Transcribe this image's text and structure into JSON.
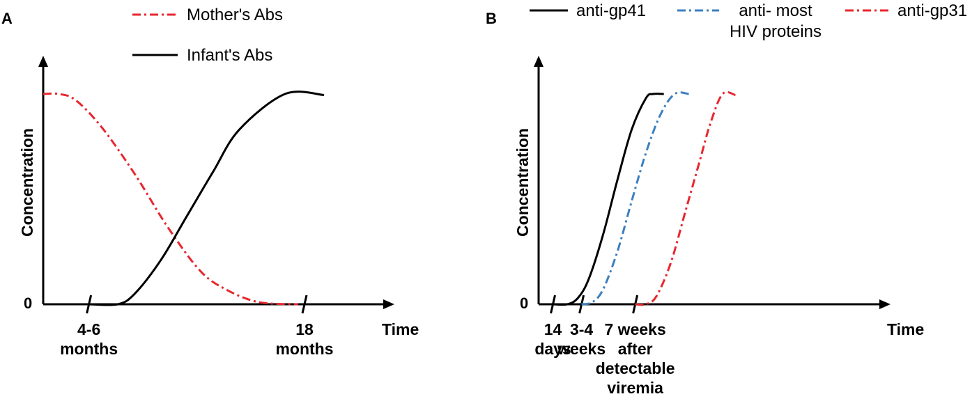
{
  "chart_data": [
    {
      "panel": "A",
      "type": "line",
      "ylabel": "Concentration",
      "xlabel": "Time",
      "y_zero_label": "0",
      "xlim": [
        0,
        20
      ],
      "ylim": [
        0,
        1
      ],
      "x_ticks": [
        {
          "x": 3.5,
          "label": [
            "4-6",
            "months"
          ]
        },
        {
          "x": 20,
          "label": [
            "18",
            "months"
          ]
        }
      ],
      "series": [
        {
          "name": "Mother's Abs",
          "color": "#e8262e",
          "dash": "dashdot",
          "points": [
            [
              0,
              1.0
            ],
            [
              1.2,
              1.0
            ],
            [
              2.5,
              0.97
            ],
            [
              4.5,
              0.84
            ],
            [
              7,
              0.62
            ],
            [
              9.5,
              0.37
            ],
            [
              12,
              0.16
            ],
            [
              14,
              0.07
            ],
            [
              16.5,
              0.01
            ],
            [
              19.5,
              0.0
            ]
          ]
        },
        {
          "name": "Infant's Abs",
          "color": "#000000",
          "dash": "solid",
          "points": [
            [
              3.5,
              0.0
            ],
            [
              5.7,
              0.0
            ],
            [
              7,
              0.05
            ],
            [
              9,
              0.21
            ],
            [
              11,
              0.42
            ],
            [
              13,
              0.63
            ],
            [
              15,
              0.83
            ],
            [
              18.5,
              1.0
            ],
            [
              21.5,
              0.995
            ]
          ]
        }
      ]
    },
    {
      "panel": "B",
      "type": "line",
      "ylabel": "Concentration",
      "xlabel": "Time",
      "y_zero_label": "0",
      "xlim": [
        0,
        26
      ],
      "ylim": [
        0,
        1
      ],
      "x_ticks": [
        {
          "x": 2,
          "label": [
            "14",
            "days"
          ]
        },
        {
          "x": 6,
          "label": [
            "3-4",
            "weeks"
          ]
        },
        {
          "x": 13.5,
          "label": [
            "7 weeks",
            "after",
            "detectable",
            "viremia"
          ]
        }
      ],
      "series": [
        {
          "name": "anti-gp41",
          "color": "#000000",
          "dash": "solid",
          "points": [
            [
              2,
              0.0
            ],
            [
              4,
              0.0
            ],
            [
              5.5,
              0.03
            ],
            [
              7,
              0.12
            ],
            [
              9,
              0.33
            ],
            [
              11,
              0.59
            ],
            [
              13,
              0.83
            ],
            [
              15,
              0.98
            ],
            [
              16,
              1.0
            ],
            [
              17.5,
              1.0
            ]
          ]
        },
        {
          "name": "anti- most HIV proteins",
          "color": "#3c7fbf",
          "dash": "dashdot",
          "points": [
            [
              6,
              0.0
            ],
            [
              7.5,
              0.01
            ],
            [
              9,
              0.07
            ],
            [
              11,
              0.25
            ],
            [
              13,
              0.49
            ],
            [
              15,
              0.72
            ],
            [
              17,
              0.9
            ],
            [
              19,
              1.0
            ],
            [
              21,
              1.0
            ]
          ]
        },
        {
          "name": "anti-gp31",
          "color": "#e8262e",
          "dash": "dashdot",
          "points": [
            [
              13.5,
              0.0
            ],
            [
              15,
              0.0
            ],
            [
              16.5,
              0.04
            ],
            [
              18.5,
              0.2
            ],
            [
              20.5,
              0.44
            ],
            [
              22.5,
              0.68
            ],
            [
              24,
              0.86
            ],
            [
              25.7,
              1.0
            ],
            [
              27.5,
              0.995
            ]
          ]
        }
      ]
    }
  ]
}
